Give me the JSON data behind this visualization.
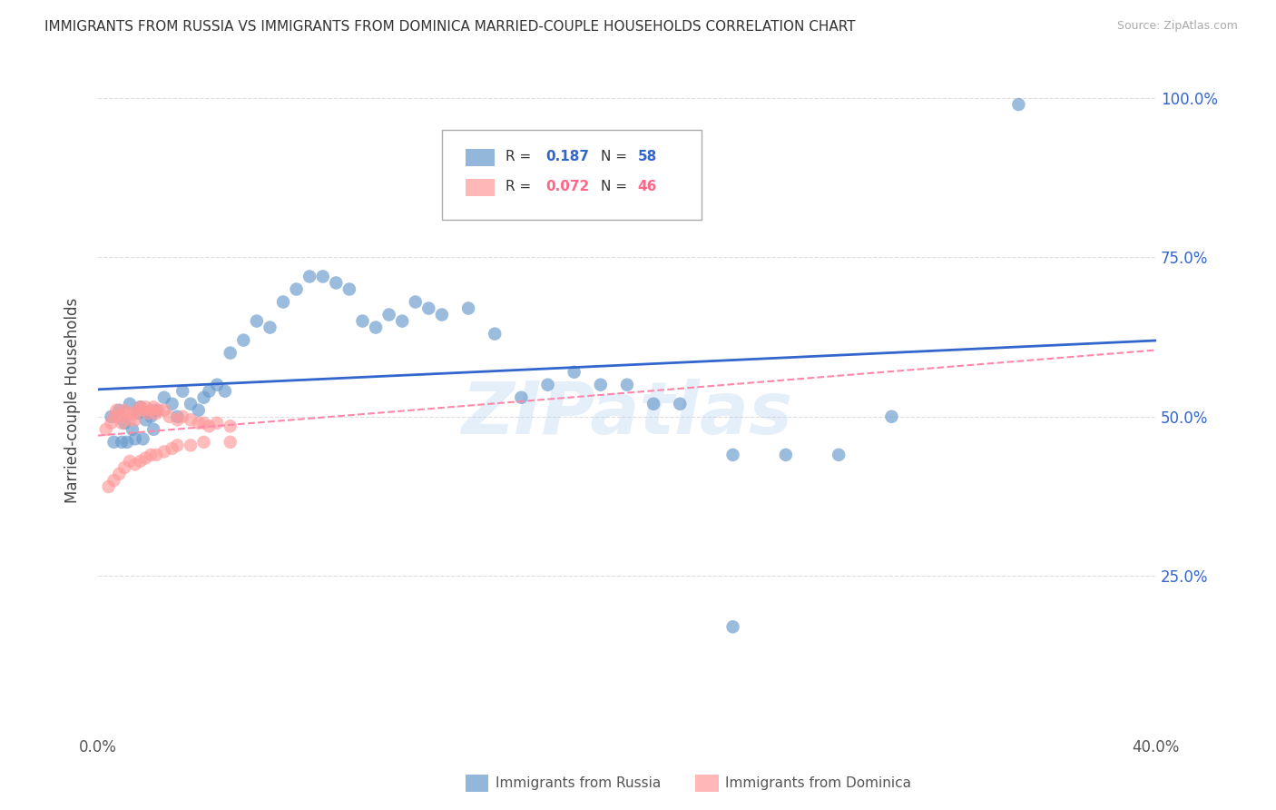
{
  "title": "IMMIGRANTS FROM RUSSIA VS IMMIGRANTS FROM DOMINICA MARRIED-COUPLE HOUSEHOLDS CORRELATION CHART",
  "source": "Source: ZipAtlas.com",
  "ylabel": "Married-couple Households",
  "xlim": [
    0.0,
    0.4
  ],
  "ylim": [
    0.0,
    1.05
  ],
  "russia_R": 0.187,
  "russia_N": 58,
  "dominica_R": 0.072,
  "dominica_N": 46,
  "russia_color": "#6699CC",
  "dominica_color": "#FF9999",
  "russia_line_color": "#3366CC",
  "dominica_line_color": "#FF88AA",
  "watermark": "ZIPatlas",
  "background_color": "#FFFFFF",
  "grid_color": "#DDDDDD",
  "russia_x": [
    0.005,
    0.008,
    0.01,
    0.012,
    0.013,
    0.015,
    0.016,
    0.018,
    0.02,
    0.022,
    0.025,
    0.028,
    0.03,
    0.032,
    0.035,
    0.038,
    0.04,
    0.042,
    0.045,
    0.048,
    0.05,
    0.055,
    0.06,
    0.065,
    0.07,
    0.075,
    0.08,
    0.085,
    0.09,
    0.095,
    0.1,
    0.105,
    0.11,
    0.115,
    0.12,
    0.125,
    0.13,
    0.14,
    0.15,
    0.16,
    0.17,
    0.18,
    0.19,
    0.2,
    0.21,
    0.22,
    0.24,
    0.26,
    0.28,
    0.3,
    0.006,
    0.009,
    0.011,
    0.014,
    0.017,
    0.021,
    0.24,
    0.348
  ],
  "russia_y": [
    0.5,
    0.51,
    0.49,
    0.52,
    0.48,
    0.505,
    0.515,
    0.495,
    0.5,
    0.51,
    0.53,
    0.52,
    0.5,
    0.54,
    0.52,
    0.51,
    0.53,
    0.54,
    0.55,
    0.54,
    0.6,
    0.62,
    0.65,
    0.64,
    0.68,
    0.7,
    0.72,
    0.72,
    0.71,
    0.7,
    0.65,
    0.64,
    0.66,
    0.65,
    0.68,
    0.67,
    0.66,
    0.67,
    0.63,
    0.53,
    0.55,
    0.57,
    0.55,
    0.55,
    0.52,
    0.52,
    0.44,
    0.44,
    0.44,
    0.5,
    0.46,
    0.46,
    0.46,
    0.465,
    0.465,
    0.48,
    0.17,
    0.99
  ],
  "dominica_x": [
    0.003,
    0.005,
    0.006,
    0.007,
    0.008,
    0.009,
    0.01,
    0.011,
    0.012,
    0.013,
    0.014,
    0.015,
    0.016,
    0.017,
    0.018,
    0.019,
    0.02,
    0.021,
    0.022,
    0.023,
    0.025,
    0.027,
    0.03,
    0.032,
    0.035,
    0.038,
    0.04,
    0.042,
    0.045,
    0.05,
    0.004,
    0.006,
    0.008,
    0.01,
    0.012,
    0.014,
    0.016,
    0.018,
    0.02,
    0.022,
    0.025,
    0.028,
    0.03,
    0.035,
    0.04,
    0.05
  ],
  "dominica_y": [
    0.48,
    0.49,
    0.5,
    0.51,
    0.5,
    0.49,
    0.51,
    0.505,
    0.495,
    0.505,
    0.495,
    0.51,
    0.515,
    0.51,
    0.515,
    0.505,
    0.51,
    0.515,
    0.505,
    0.51,
    0.51,
    0.5,
    0.495,
    0.5,
    0.495,
    0.49,
    0.49,
    0.485,
    0.49,
    0.485,
    0.39,
    0.4,
    0.41,
    0.42,
    0.43,
    0.425,
    0.43,
    0.435,
    0.44,
    0.44,
    0.445,
    0.45,
    0.455,
    0.455,
    0.46,
    0.46
  ]
}
